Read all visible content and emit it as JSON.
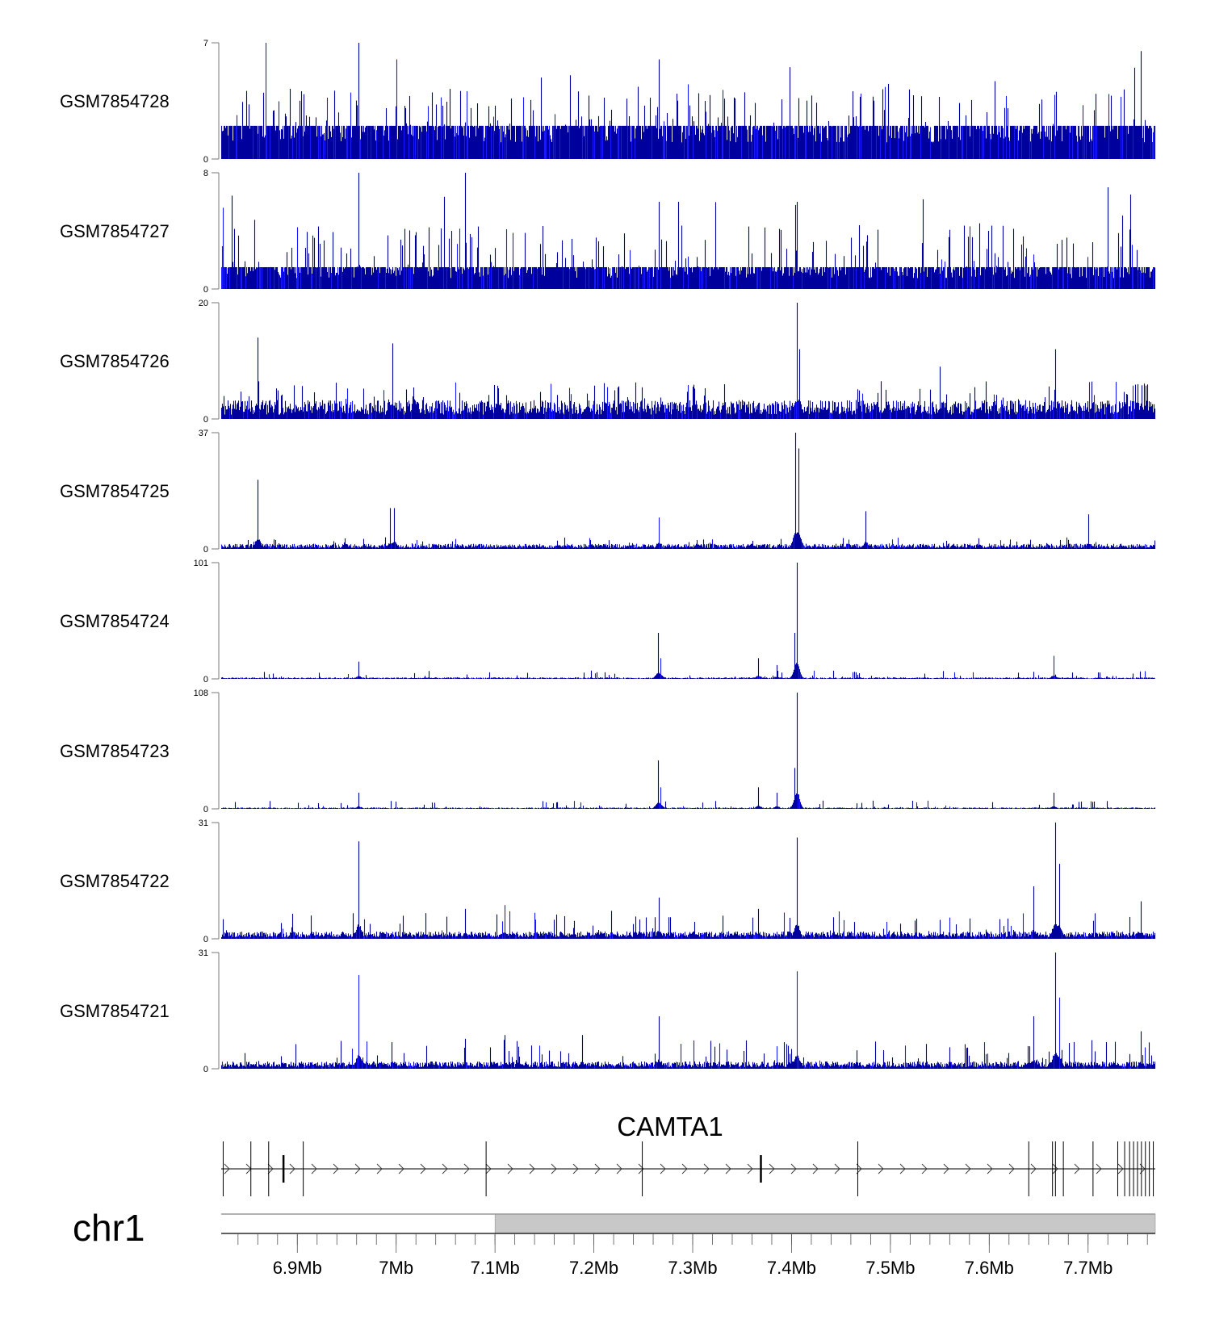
{
  "chart_data": {
    "type": "bar",
    "title": "",
    "xlabel": "",
    "ylabel": "",
    "xlim_mb": [
      6.823,
      7.768
    ],
    "bar_color": "#00009c",
    "highlight_color": "#1a1aff",
    "tracks": [
      {
        "name": "GSM7854728",
        "ylim": [
          0,
          7
        ],
        "ytick_labels": [
          "0",
          "7"
        ],
        "baseline": 2,
        "noise": "dense",
        "peaks": [
          {
            "x": 6.868,
            "y": 7
          },
          {
            "x": 6.962,
            "y": 7
          },
          {
            "x": 7.0,
            "y": 6
          },
          {
            "x": 7.266,
            "y": 6
          },
          {
            "x": 7.753,
            "y": 6.5
          }
        ]
      },
      {
        "name": "GSM7854727",
        "ylim": [
          0,
          8
        ],
        "ytick_labels": [
          "0",
          "8"
        ],
        "baseline": 1.5,
        "noise": "dense",
        "peaks": [
          {
            "x": 6.962,
            "y": 8
          },
          {
            "x": 7.07,
            "y": 8
          },
          {
            "x": 7.266,
            "y": 6
          },
          {
            "x": 7.285,
            "y": 6
          },
          {
            "x": 7.405,
            "y": 6
          },
          {
            "x": 7.72,
            "y": 7
          },
          {
            "x": 7.743,
            "y": 6.5
          }
        ]
      },
      {
        "name": "GSM7854726",
        "ylim": [
          0,
          20
        ],
        "ytick_labels": [
          "0",
          "20"
        ],
        "baseline": 2.5,
        "noise": "moderate",
        "peaks": [
          {
            "x": 6.86,
            "y": 14
          },
          {
            "x": 6.996,
            "y": 13
          },
          {
            "x": 7.405,
            "y": 20
          },
          {
            "x": 7.408,
            "y": 12
          },
          {
            "x": 7.667,
            "y": 12
          },
          {
            "x": 7.55,
            "y": 9
          }
        ]
      },
      {
        "name": "GSM7854725",
        "ylim": [
          0,
          37
        ],
        "ytick_labels": [
          "0",
          "37"
        ],
        "baseline": 1.5,
        "noise": "sparse",
        "peaks": [
          {
            "x": 6.86,
            "y": 22
          },
          {
            "x": 6.994,
            "y": 13
          },
          {
            "x": 6.998,
            "y": 13
          },
          {
            "x": 7.266,
            "y": 10
          },
          {
            "x": 7.404,
            "y": 37
          },
          {
            "x": 7.407,
            "y": 32
          },
          {
            "x": 7.475,
            "y": 12
          },
          {
            "x": 7.7,
            "y": 11
          }
        ]
      },
      {
        "name": "GSM7854724",
        "ylim": [
          0,
          101
        ],
        "ytick_labels": [
          "0",
          "101"
        ],
        "baseline": 1.2,
        "noise": "sparse",
        "peaks": [
          {
            "x": 6.962,
            "y": 15
          },
          {
            "x": 7.265,
            "y": 40
          },
          {
            "x": 7.267,
            "y": 18
          },
          {
            "x": 7.366,
            "y": 18
          },
          {
            "x": 7.385,
            "y": 12
          },
          {
            "x": 7.403,
            "y": 40
          },
          {
            "x": 7.405,
            "y": 101
          },
          {
            "x": 7.665,
            "y": 20
          }
        ]
      },
      {
        "name": "GSM7854723",
        "ylim": [
          0,
          108
        ],
        "ytick_labels": [
          "0",
          "108"
        ],
        "baseline": 1.2,
        "noise": "sparse",
        "peaks": [
          {
            "x": 6.962,
            "y": 15
          },
          {
            "x": 7.265,
            "y": 45
          },
          {
            "x": 7.267,
            "y": 20
          },
          {
            "x": 7.366,
            "y": 20
          },
          {
            "x": 7.385,
            "y": 15
          },
          {
            "x": 7.403,
            "y": 38
          },
          {
            "x": 7.405,
            "y": 108
          },
          {
            "x": 7.665,
            "y": 15
          }
        ]
      },
      {
        "name": "GSM7854722",
        "ylim": [
          0,
          31
        ],
        "ytick_labels": [
          "0",
          "31"
        ],
        "baseline": 1.5,
        "noise": "moderate",
        "peaks": [
          {
            "x": 6.962,
            "y": 26
          },
          {
            "x": 7.07,
            "y": 8
          },
          {
            "x": 7.11,
            "y": 9
          },
          {
            "x": 7.266,
            "y": 11
          },
          {
            "x": 7.366,
            "y": 8
          },
          {
            "x": 7.405,
            "y": 27
          },
          {
            "x": 7.645,
            "y": 14
          },
          {
            "x": 7.667,
            "y": 31
          },
          {
            "x": 7.671,
            "y": 20
          },
          {
            "x": 7.753,
            "y": 10
          }
        ]
      },
      {
        "name": "GSM7854721",
        "ylim": [
          0,
          31
        ],
        "ytick_labels": [
          "0",
          "31"
        ],
        "baseline": 1.5,
        "noise": "moderate",
        "peaks": [
          {
            "x": 6.962,
            "y": 25
          },
          {
            "x": 7.07,
            "y": 8
          },
          {
            "x": 7.11,
            "y": 9
          },
          {
            "x": 7.188,
            "y": 9
          },
          {
            "x": 7.266,
            "y": 14
          },
          {
            "x": 7.385,
            "y": 6
          },
          {
            "x": 7.405,
            "y": 26
          },
          {
            "x": 7.645,
            "y": 14
          },
          {
            "x": 7.667,
            "y": 31
          },
          {
            "x": 7.671,
            "y": 19
          },
          {
            "x": 7.753,
            "y": 10
          }
        ]
      }
    ],
    "gene": {
      "name": "CAMTA1",
      "strand": "+",
      "exons_mb": [
        6.825,
        6.853,
        6.871,
        6.886,
        6.906,
        7.091,
        7.249,
        7.369,
        7.467,
        7.64,
        7.664,
        7.667,
        7.675,
        7.705,
        7.73,
        7.737,
        7.742,
        7.746,
        7.75,
        7.754,
        7.758,
        7.762,
        7.766
      ]
    },
    "chromosome": {
      "name": "chr1",
      "band_boundary_mb": 7.1
    },
    "x_ticks_mb": [
      6.9,
      7.0,
      7.1,
      7.2,
      7.3,
      7.4,
      7.5,
      7.6,
      7.7
    ],
    "x_tick_labels": [
      "6.9Mb",
      "7Mb",
      "7.1Mb",
      "7.2Mb",
      "7.3Mb",
      "7.4Mb",
      "7.5Mb",
      "7.6Mb",
      "7.7Mb"
    ]
  }
}
